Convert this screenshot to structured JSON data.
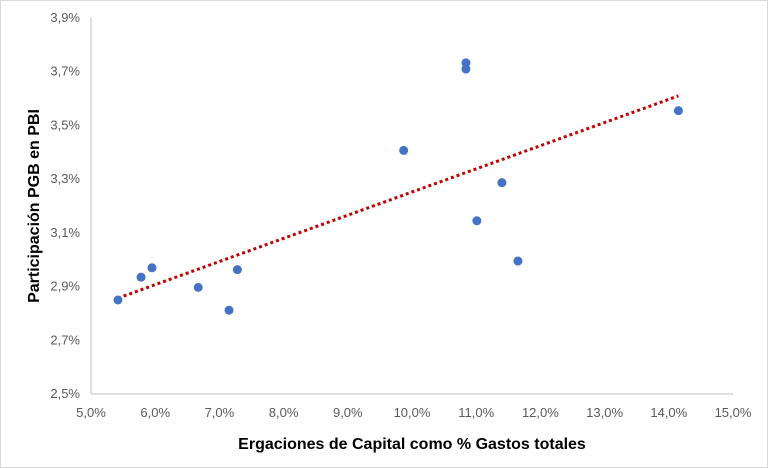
{
  "chart_data": {
    "type": "scatter",
    "title": "",
    "xlabel": "Ergaciones de Capital como % Gastos totales",
    "ylabel": "Participación PGB en PBI",
    "xlim": [
      5.0,
      15.0
    ],
    "ylim": [
      2.5,
      3.9
    ],
    "x_ticks": [
      "5,0%",
      "6,0%",
      "7,0%",
      "8,0%",
      "9,0%",
      "10,0%",
      "11,0%",
      "12,0%",
      "13,0%",
      "14,0%",
      "15,0%"
    ],
    "y_ticks": [
      "2,5%",
      "2,7%",
      "2,9%",
      "3,1%",
      "3,3%",
      "3,5%",
      "3,7%",
      "3,9%"
    ],
    "grid": false,
    "legend": "none",
    "points": [
      {
        "x": 5.42,
        "y": 2.85
      },
      {
        "x": 5.78,
        "y": 2.935
      },
      {
        "x": 5.95,
        "y": 2.97
      },
      {
        "x": 6.67,
        "y": 2.897
      },
      {
        "x": 7.15,
        "y": 2.812
      },
      {
        "x": 7.28,
        "y": 2.963
      },
      {
        "x": 9.87,
        "y": 3.407
      },
      {
        "x": 10.84,
        "y": 3.733
      },
      {
        "x": 10.84,
        "y": 3.71
      },
      {
        "x": 11.01,
        "y": 3.145
      },
      {
        "x": 11.4,
        "y": 3.287
      },
      {
        "x": 11.65,
        "y": 2.995
      },
      {
        "x": 14.15,
        "y": 3.555
      }
    ],
    "trendline": {
      "type": "linear",
      "style": "dotted",
      "x_start": 5.42,
      "y_start": 2.857,
      "x_end": 14.15,
      "y_end": 3.61
    },
    "colors": {
      "points": "#4472C4",
      "trendline": "#C00000",
      "axis": "#bfbfbf"
    }
  }
}
